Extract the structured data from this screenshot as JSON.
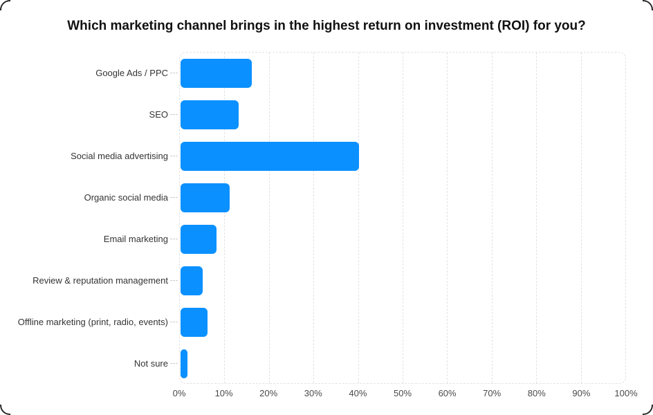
{
  "header": {
    "title": "Which marketing channel brings in the highest return on investment (ROI) for you?"
  },
  "chart_data": {
    "type": "bar",
    "orientation": "horizontal",
    "title": "Which marketing channel brings in the highest return on investment (ROI) for you?",
    "categories": [
      "Google Ads / PPC",
      "SEO",
      "Social media advertising",
      "Organic social media",
      "Email marketing",
      "Review & reputation management",
      "Offline marketing (print, radio, events)",
      "Not sure"
    ],
    "values": [
      16,
      13,
      40,
      11,
      8,
      5,
      6,
      1.5
    ],
    "unit": "%",
    "xlabel": "",
    "ylabel": "",
    "xlim": [
      0,
      100
    ],
    "x_tick_step": 10,
    "x_ticks": [
      "0%",
      "10%",
      "20%",
      "30%",
      "40%",
      "50%",
      "60%",
      "70%",
      "80%",
      "90%",
      "100%"
    ],
    "grid": "vertical-dashed",
    "legend": "none",
    "colors": {
      "bar": "#0A90FF",
      "title_text": "#111111",
      "category_text": "#333333",
      "tick_text": "#4a4a4a",
      "gridline": "#e2e2e2",
      "tick_dash": "#cccccc",
      "card_background": "#ffffff",
      "card_corner": "#222222"
    }
  }
}
